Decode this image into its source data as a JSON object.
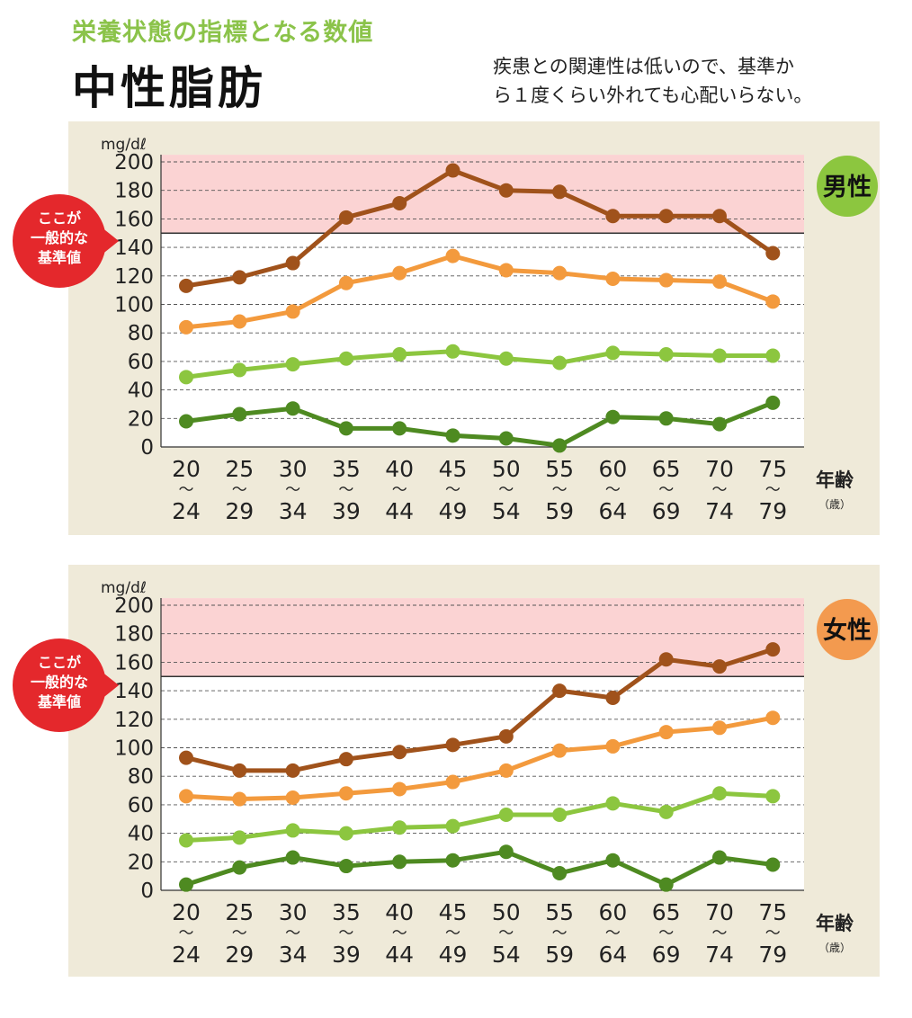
{
  "header": {
    "subtitle": "栄養状態の指標となる数値",
    "title": "中性脂肪",
    "note_line1": "疾患との関連性は低いので、基準か",
    "note_line2": "ら１度くらい外れても心配いらない。"
  },
  "shared": {
    "unit": "mg/dℓ",
    "axis_title": "年齢",
    "axis_unit": "（歳）",
    "callout_lines": [
      "ここが",
      "一般的な",
      "基準値"
    ],
    "tilde": "〜"
  },
  "colors": {
    "dark_brown": "#a0521b",
    "orange": "#f39a3d",
    "light_green": "#8cc63f",
    "dark_green": "#4e8a21",
    "band": "#fbd3d3",
    "panel": "#efead9",
    "callout": "#e4282c",
    "male_badge": "#8cc63f",
    "female_badge": "#f39a4f"
  },
  "chart_data": [
    {
      "type": "line",
      "badge": "男性",
      "categories": [
        "20〜24",
        "25〜29",
        "30〜34",
        "35〜39",
        "40〜44",
        "45〜49",
        "50〜54",
        "55〜59",
        "60〜64",
        "65〜69",
        "70〜74",
        "75〜79"
      ],
      "x_start": [
        "20",
        "25",
        "30",
        "35",
        "40",
        "45",
        "50",
        "55",
        "60",
        "65",
        "70",
        "75"
      ],
      "x_end": [
        "24",
        "29",
        "34",
        "39",
        "44",
        "49",
        "54",
        "59",
        "64",
        "69",
        "74",
        "79"
      ],
      "ylim": [
        0,
        200
      ],
      "yticks": [
        "0",
        "20",
        "40",
        "60",
        "80",
        "100",
        "120",
        "140",
        "160",
        "180",
        "200"
      ],
      "ylabel": "mg/dℓ",
      "xlabel": "年齢",
      "reference_line": 150,
      "shaded_band": [
        150,
        205
      ],
      "grid": true,
      "series": [
        {
          "color": "#a0521b",
          "values": [
            113,
            119,
            129,
            161,
            171,
            194,
            180,
            179,
            162,
            162,
            162,
            136
          ]
        },
        {
          "color": "#f39a3d",
          "values": [
            84,
            88,
            95,
            115,
            122,
            134,
            124,
            122,
            118,
            117,
            116,
            102
          ]
        },
        {
          "color": "#8cc63f",
          "values": [
            49,
            54,
            58,
            62,
            65,
            67,
            62,
            59,
            66,
            65,
            64,
            64
          ]
        },
        {
          "color": "#4e8a21",
          "values": [
            18,
            23,
            27,
            13,
            13,
            8,
            6,
            1,
            21,
            20,
            16,
            31
          ]
        }
      ]
    },
    {
      "type": "line",
      "badge": "女性",
      "categories": [
        "20〜24",
        "25〜29",
        "30〜34",
        "35〜39",
        "40〜44",
        "45〜49",
        "50〜54",
        "55〜59",
        "60〜64",
        "65〜69",
        "70〜74",
        "75〜79"
      ],
      "x_start": [
        "20",
        "25",
        "30",
        "35",
        "40",
        "45",
        "50",
        "55",
        "60",
        "65",
        "70",
        "75"
      ],
      "x_end": [
        "24",
        "29",
        "34",
        "39",
        "44",
        "49",
        "54",
        "59",
        "64",
        "69",
        "74",
        "79"
      ],
      "ylim": [
        0,
        200
      ],
      "yticks": [
        "0",
        "20",
        "40",
        "60",
        "80",
        "100",
        "120",
        "140",
        "160",
        "180",
        "200"
      ],
      "ylabel": "mg/dℓ",
      "xlabel": "年齢",
      "reference_line": 150,
      "shaded_band": [
        150,
        205
      ],
      "grid": true,
      "series": [
        {
          "color": "#a0521b",
          "values": [
            93,
            84,
            84,
            92,
            97,
            102,
            108,
            140,
            135,
            162,
            157,
            169
          ]
        },
        {
          "color": "#f39a3d",
          "values": [
            66,
            64,
            65,
            68,
            71,
            76,
            84,
            98,
            101,
            111,
            114,
            121
          ]
        },
        {
          "color": "#8cc63f",
          "values": [
            35,
            37,
            42,
            40,
            44,
            45,
            53,
            53,
            61,
            55,
            68,
            66
          ]
        },
        {
          "color": "#4e8a21",
          "values": [
            4,
            16,
            23,
            17,
            20,
            21,
            27,
            12,
            21,
            4,
            23,
            18
          ]
        }
      ]
    }
  ]
}
